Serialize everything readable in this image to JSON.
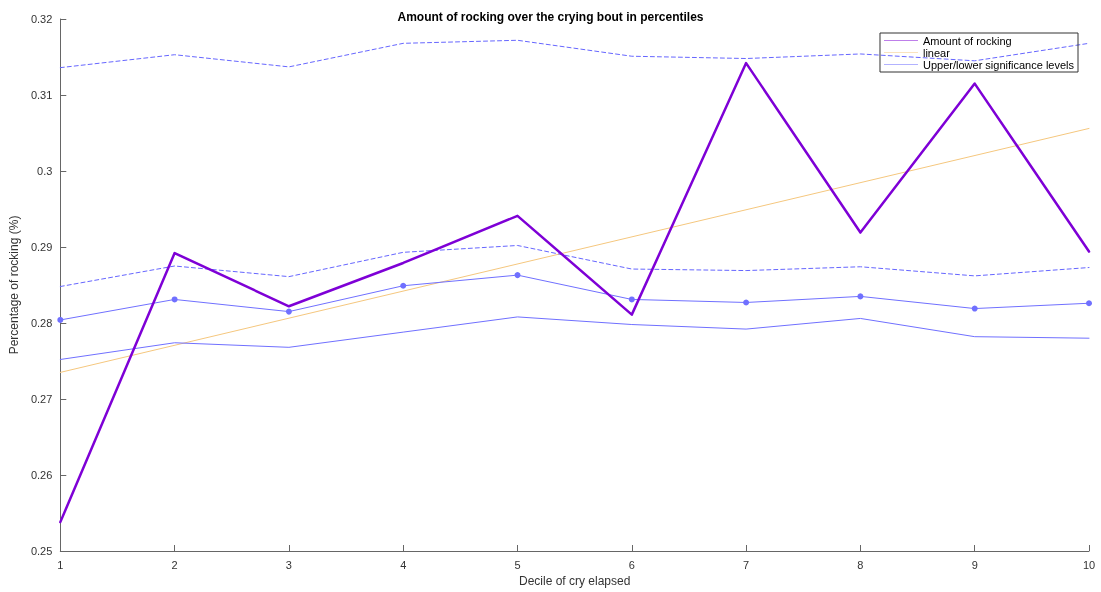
{
  "chart_data": {
    "type": "line",
    "title": "Amount of rocking over the crying bout in percentiles",
    "xlabel": "Decile of cry elapsed",
    "ylabel": "Percentage of rocking (%)",
    "x": [
      1,
      2,
      3,
      4,
      5,
      6,
      7,
      8,
      9,
      10
    ],
    "series": [
      {
        "name": "Amount of rocking",
        "color": "#7e00d6",
        "values": [
          0.2538,
          0.2892,
          0.2822,
          0.2879,
          0.2941,
          0.2811,
          0.3142,
          0.2919,
          0.3115,
          0.2894
        ]
      },
      {
        "name": "linear",
        "color": "#f5c77e",
        "x": [
          1,
          10
        ],
        "values": [
          0.2735,
          0.3056
        ]
      },
      {
        "name": "Upper/lower significance levels",
        "color": "#6666ff",
        "line_style": "dashed",
        "values": [
          0.3136,
          0.3153,
          0.3137,
          0.3168,
          0.3172,
          0.3151,
          0.3148,
          0.3154,
          0.3145,
          0.3168
        ]
      },
      {
        "color": "#6666ff",
        "line_style": "dashed",
        "values": [
          0.2848,
          0.2875,
          0.2861,
          0.2893,
          0.2902,
          0.2871,
          0.2869,
          0.2874,
          0.2862,
          0.2873
        ]
      },
      {
        "color": "#7070ff",
        "marker": "circle",
        "values": [
          0.2804,
          0.2831,
          0.2815,
          0.2849,
          0.2863,
          0.2831,
          0.2827,
          0.2835,
          0.2819,
          0.2826
        ]
      },
      {
        "color": "#7070ff",
        "values": [
          0.2752,
          0.2774,
          0.2768,
          0.2788,
          0.2808,
          0.2798,
          0.2792,
          0.2806,
          0.2782,
          0.278
        ]
      }
    ],
    "xlim": [
      1,
      10
    ],
    "xticks": [
      1,
      2,
      3,
      4,
      5,
      6,
      7,
      8,
      9,
      10
    ],
    "ylim": [
      0.25,
      0.32
    ],
    "yticks": [
      0.25,
      0.26,
      0.27,
      0.28,
      0.29,
      0.3,
      0.31,
      0.32
    ],
    "grid": false,
    "legend": "top right",
    "marker": "none",
    "line_style": "solid"
  }
}
